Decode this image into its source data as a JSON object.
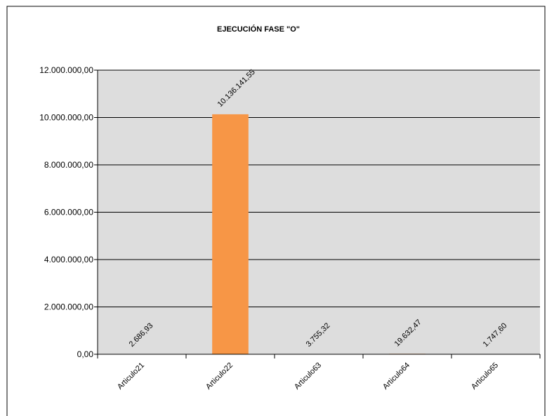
{
  "chart_data": {
    "type": "bar",
    "title": "EJECUCIÓN FASE \"O\"",
    "xlabel": "",
    "ylabel": "",
    "categories": [
      "Articulo21",
      "Articulo22",
      "Articulo63",
      "Articulo64",
      "Articulo65"
    ],
    "values": [
      2686.93,
      10136141.55,
      3755.32,
      19632.47,
      1747.6
    ],
    "data_labels": [
      "2.686,93",
      "10.136.141,55",
      "3.755,32",
      "19.632,47",
      "1.747,60"
    ],
    "ylim": [
      0,
      12000000
    ],
    "yticks": [
      0,
      2000000,
      4000000,
      6000000,
      8000000,
      10000000,
      12000000
    ],
    "ytick_labels": [
      "0,00",
      "2.000.000,00",
      "4.000.000,00",
      "6.000.000,00",
      "8.000.000,00",
      "10.000.000,00",
      "12.000.000,00"
    ],
    "grid": true,
    "legend": "none",
    "colors": {
      "bar": "#F79646",
      "plot_background": "#DDDDDD",
      "gridline": "#000000",
      "frame": "#000000"
    }
  }
}
